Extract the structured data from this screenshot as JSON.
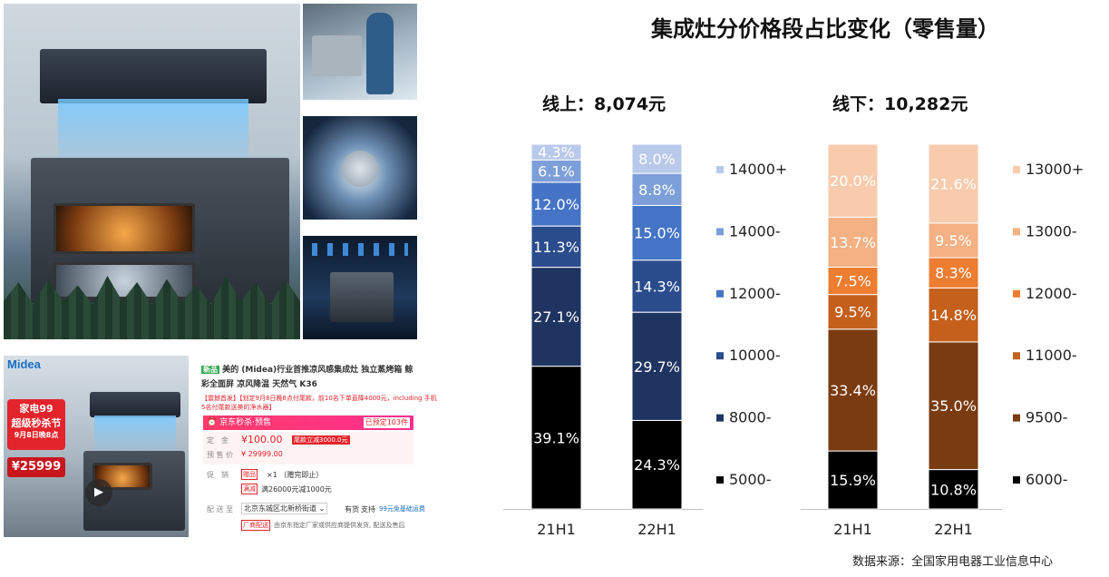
{
  "title": "集成灶分价格段占比变化（零售量）",
  "source": "数据来源：全国家用电器工业信息中心",
  "product": {
    "brand_logo": "Midea",
    "promo_badge_line1": "家电99",
    "promo_badge_line2": "超级秒杀节",
    "promo_badge_line3": "9月8日晚8点",
    "promo_price": "¥25999",
    "tag_new": "新品",
    "name": "美的 (Midea)行业首推凉风感集成灶 独立蒸烤箱 鲸",
    "name_line2": "彩全面屏 凉风降温 天然气 K36",
    "notice1": "【震撼首发】【划定9月8日晚8点付尾款，前10名下单直降4000元，including 手机",
    "notice2": "5名付尾款送美的净水器】",
    "seckill_label": "京东秒杀·预售",
    "seckill_count_label": "已预定103件",
    "deposit_label": "定　金",
    "deposit_value": "¥100.00",
    "deposit_note": "尾款立减3000.0元",
    "presale_label": "预 售 价",
    "presale_value": "¥ 29999.00",
    "promo_label": "促　销",
    "gift_tag": "赠品",
    "gift_text": "×1  （赠完即止）",
    "discount_tag": "满减",
    "discount_text": "满26000元减1000元",
    "delivery_label": "配 送 至",
    "delivery_value": "北京东城区北新桥街道",
    "delivery_stock": "有货",
    "delivery_support": "支持",
    "delivery_fee": "99元免基础运费",
    "factory_tag": "厂商配送",
    "factory_text": "由京东指定厂家或供应商提供发货, 配送及售后"
  },
  "chart_data": [
    {
      "type": "bar",
      "stacked": true,
      "percent": true,
      "title": "线上：8,074元",
      "categories": [
        "21H1",
        "22H1"
      ],
      "series": [
        {
          "name": "5000-",
          "color": "#000000",
          "values": [
            39.1,
            24.3
          ]
        },
        {
          "name": "8000-",
          "color": "#1f3461",
          "values": [
            27.1,
            29.7
          ]
        },
        {
          "name": "10000-",
          "color": "#2b4c8c",
          "values": [
            11.3,
            14.3
          ]
        },
        {
          "name": "12000-",
          "color": "#4574c6",
          "values": [
            12.0,
            15.0
          ]
        },
        {
          "name": "14000-",
          "color": "#7d9fd9",
          "values": [
            6.1,
            8.8
          ]
        },
        {
          "name": "14000+",
          "color": "#b9c9ea",
          "values": [
            4.3,
            8.0
          ]
        }
      ]
    },
    {
      "type": "bar",
      "stacked": true,
      "percent": true,
      "title": "线下：10,282元",
      "categories": [
        "21H1",
        "22H1"
      ],
      "series": [
        {
          "name": "6000-",
          "color": "#000000",
          "values": [
            15.9,
            10.8
          ]
        },
        {
          "name": "9500-",
          "color": "#7a3b10",
          "values": [
            33.4,
            35.0
          ]
        },
        {
          "name": "11000-",
          "color": "#c4601c",
          "values": [
            9.5,
            14.8
          ]
        },
        {
          "name": "12000-",
          "color": "#ed7d31",
          "values": [
            7.5,
            8.3
          ]
        },
        {
          "name": "13000-",
          "color": "#f4b183",
          "values": [
            13.7,
            9.5
          ]
        },
        {
          "name": "13000+",
          "color": "#f8cbad",
          "values": [
            20.0,
            21.6
          ]
        }
      ]
    }
  ]
}
